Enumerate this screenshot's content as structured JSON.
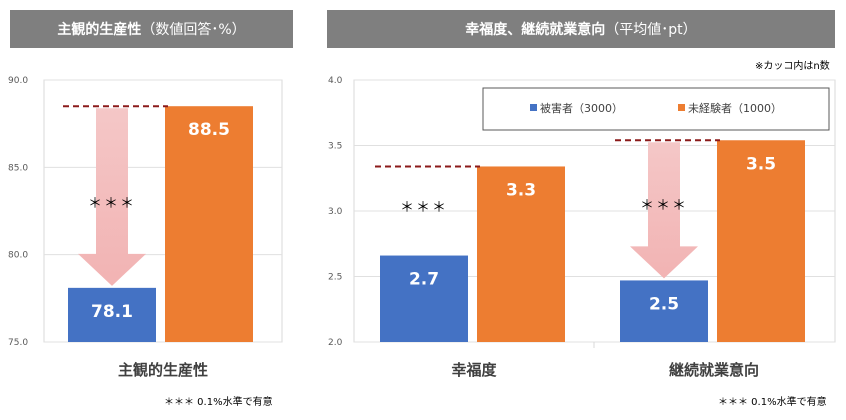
{
  "chart_data": [
    {
      "type": "bar",
      "title": "主観的生産性",
      "title_suffix": "（数値回答･%）",
      "categories": [
        "主観的生産性"
      ],
      "series": [
        {
          "name": "被害者（3000）",
          "values": [
            78.1
          ],
          "color": "#4472c4"
        },
        {
          "name": "未経験者（1000）",
          "values": [
            88.5
          ],
          "color": "#ed7d31"
        }
      ],
      "value_labels": [
        "78.1",
        "88.5"
      ],
      "ylim": [
        75.0,
        90.0
      ],
      "yticks": [
        "75.0",
        "80.0",
        "85.0",
        "90.0"
      ],
      "significance": [
        "＊＊＊"
      ],
      "footnote": "＊＊＊ 0.1%水準で有意",
      "grid": true
    },
    {
      "type": "bar",
      "title": "幸福度、継続就業意向",
      "title_suffix": "（平均値･pt）",
      "categories": [
        "幸福度",
        "継続就業意向"
      ],
      "series": [
        {
          "name": "被害者（3000）",
          "values": [
            2.66,
            2.47
          ],
          "color": "#4472c4"
        },
        {
          "name": "未経験者（1000）",
          "values": [
            3.34,
            3.54
          ],
          "color": "#ed7d31"
        }
      ],
      "value_labels": [
        [
          "2.7",
          "2.5"
        ],
        [
          "3.3",
          "3.5"
        ]
      ],
      "ylim": [
        2.0,
        4.0
      ],
      "yticks": [
        "2.0",
        "2.5",
        "3.0",
        "3.5",
        "4.0"
      ],
      "significance": [
        "＊＊＊",
        "＊＊＊"
      ],
      "note": "※カッコ内はn数",
      "footnote": "＊＊＊ 0.1%水準で有意",
      "legend_placement": "top",
      "grid": true
    }
  ]
}
